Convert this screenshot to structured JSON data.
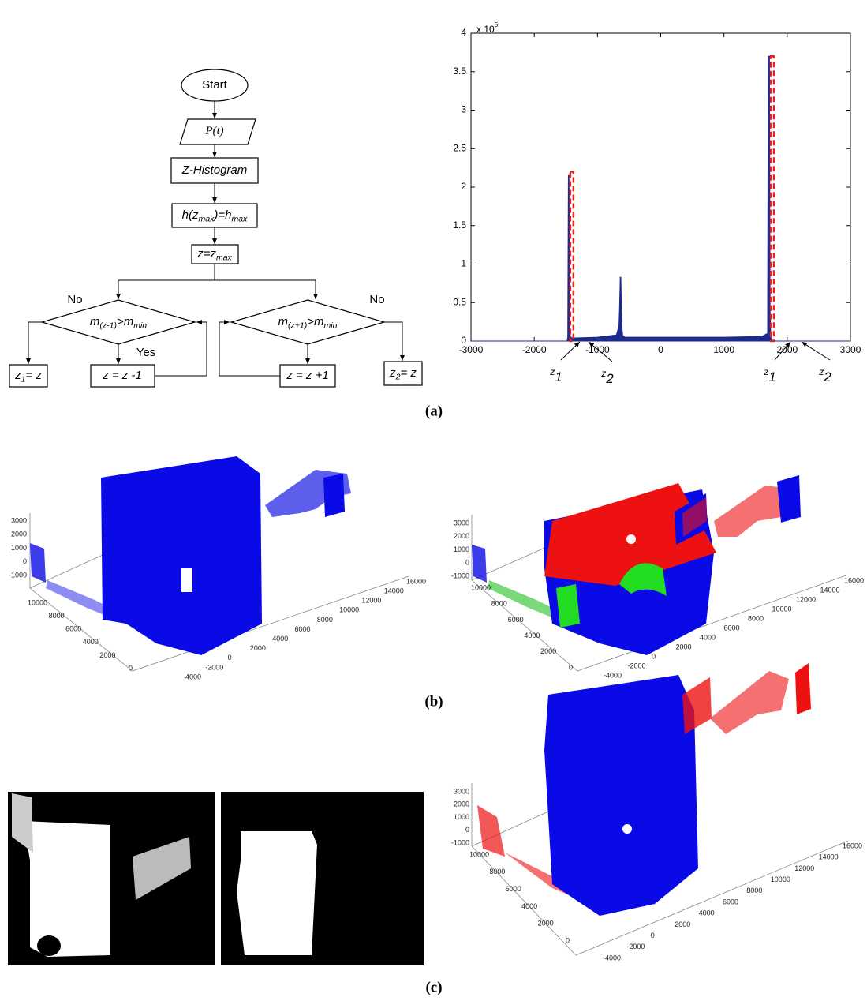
{
  "flowchart": {
    "nodes": [
      {
        "parts": [
          "Start"
        ]
      },
      {
        "parts": [
          "P(t)"
        ]
      },
      {
        "parts": [
          "Z-Histogram"
        ]
      },
      {
        "parts": [
          "h(z",
          "max",
          ")=h",
          "max"
        ]
      },
      {
        "parts": [
          "z=z",
          "max"
        ]
      },
      {
        "parts": [
          "m",
          "(z-1)",
          ">m",
          "min"
        ]
      },
      {
        "parts": [
          "m",
          "(z+1)",
          ">m",
          "min"
        ]
      },
      {
        "parts": [
          "z",
          "1",
          "= z"
        ]
      },
      {
        "parts": [
          "z = z -1"
        ]
      },
      {
        "parts": [
          "z = z +1"
        ]
      },
      {
        "parts": [
          "z",
          "2",
          "= z"
        ]
      }
    ],
    "edge_labels": [
      "No",
      "Yes",
      "No"
    ]
  },
  "chart_data": {
    "type": "area",
    "color": "#1c2a8c",
    "x": [
      -3000,
      -1480,
      -1470,
      -1460,
      -1450,
      -1440,
      -1430,
      -1400,
      -1000,
      -700,
      -660,
      -650,
      -640,
      -630,
      -620,
      -610,
      -600,
      -560,
      0,
      1000,
      1600,
      1690,
      1700,
      1710,
      1720,
      1730,
      1740,
      1760,
      3000
    ],
    "values": [
      0,
      0,
      0.05,
      2.15,
      2.15,
      0.3,
      0.06,
      0.04,
      0.05,
      0.08,
      0.2,
      0.45,
      0.83,
      0.83,
      0.4,
      0.15,
      0.07,
      0.05,
      0.05,
      0.05,
      0.06,
      0.1,
      3.7,
      3.7,
      3.7,
      0.4,
      0.05,
      0,
      0
    ],
    "highlights": [
      {
        "x": [
          -1430,
          -1380
        ],
        "height": 2.2
      },
      {
        "x": [
          1740,
          1790
        ],
        "height": 3.7
      }
    ],
    "highlight_color": "#e32222",
    "xlim": [
      -3000,
      3000
    ],
    "ylim": [
      0,
      4
    ],
    "xticks": [
      -3000,
      -2000,
      -1000,
      0,
      1000,
      2000,
      3000
    ],
    "yticks": [
      0,
      0.5,
      1,
      1.5,
      2,
      2.5,
      3,
      3.5,
      4
    ],
    "y_multiplier": {
      "base": "x 10",
      "exp": "5"
    },
    "annotations": [
      {
        "parts": [
          "z",
          "1"
        ]
      },
      {
        "parts": [
          "z",
          "2"
        ]
      },
      {
        "parts": [
          "z",
          "1"
        ]
      },
      {
        "parts": [
          "z",
          "2"
        ]
      }
    ]
  },
  "plots_3d": [
    {
      "z_ticks": [
        3000,
        2000,
        1000,
        0,
        -1000
      ],
      "y_ticks": [
        10000,
        8000,
        6000,
        4000,
        2000,
        0
      ],
      "x_ticks": [
        -4000,
        -2000,
        0,
        2000,
        4000,
        6000,
        8000,
        10000,
        12000,
        14000,
        16000
      ]
    },
    {
      "z_ticks": [
        3000,
        2000,
        1000,
        0,
        -1000
      ],
      "y_ticks": [
        10000,
        8000,
        6000,
        4000,
        2000,
        0
      ],
      "x_ticks": [
        -4000,
        -2000,
        0,
        2000,
        4000,
        6000,
        8000,
        10000,
        12000,
        14000,
        16000
      ]
    },
    {
      "z_ticks": [
        3000,
        2000,
        1000,
        0,
        -1000
      ],
      "y_ticks": [
        10000,
        8000,
        6000,
        4000,
        2000,
        0
      ],
      "x_ticks": [
        -4000,
        -2000,
        0,
        2000,
        4000,
        6000,
        8000,
        10000,
        12000,
        14000,
        16000
      ]
    }
  ],
  "panel_labels": [
    "(a)",
    "(b)",
    "(c)"
  ]
}
